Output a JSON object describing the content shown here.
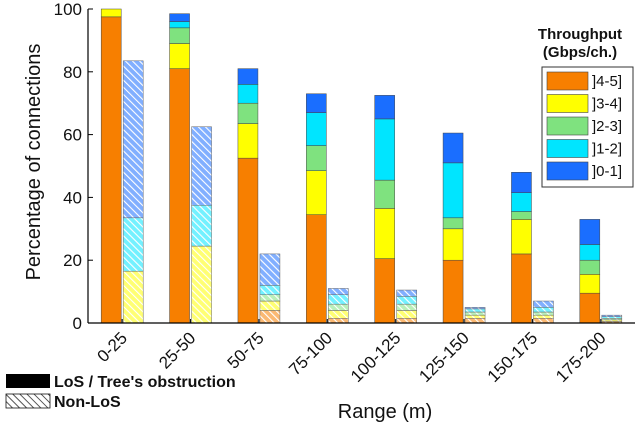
{
  "chart_data": {
    "type": "bar",
    "stacked": true,
    "ylabel": "Percentage of connections",
    "xlabel": "Range (m)",
    "ylim": [
      0,
      100
    ],
    "yticks": [
      0,
      20,
      40,
      60,
      80,
      100
    ],
    "grid": false,
    "categories": [
      "0-25",
      "25-50",
      "50-75",
      "75-100",
      "100-125",
      "125-150",
      "150-175",
      "175-200"
    ],
    "legend": {
      "title_line1": "Throughput",
      "title_line2": "(Gbps/ch.)",
      "placement": "top-right",
      "entries": [
        "]4-5]",
        "]3-4]",
        "]2-3]",
        "]1-2]",
        "]0-1]"
      ]
    },
    "groups": [
      {
        "name": "LoS / Tree's obstruction",
        "pattern": "solid"
      },
      {
        "name": "Non-LoS",
        "pattern": "hatched"
      }
    ],
    "colors": {
      "]4-5]": "#f77f00",
      "]3-4]": "#ffff00",
      "]2-3]": "#7fe27f",
      "]1-2]": "#00e5ff",
      "]0-1]": "#1a6eff"
    },
    "series": [
      {
        "name": "]4-5]",
        "group": "LoS / Tree's obstruction",
        "values": [
          97.5,
          81,
          52.5,
          34.5,
          20.5,
          20,
          22,
          9.5
        ]
      },
      {
        "name": "]3-4]",
        "group": "LoS / Tree's obstruction",
        "values": [
          2.5,
          8,
          11,
          14,
          16,
          10,
          11,
          6
        ]
      },
      {
        "name": "]2-3]",
        "group": "LoS / Tree's obstruction",
        "values": [
          0,
          5,
          6.5,
          8,
          9,
          3.5,
          2.5,
          4.5
        ]
      },
      {
        "name": "]1-2]",
        "group": "LoS / Tree's obstruction",
        "values": [
          0,
          2,
          6,
          10.5,
          19.5,
          17.5,
          6,
          5
        ]
      },
      {
        "name": "]0-1]",
        "group": "LoS / Tree's obstruction",
        "values": [
          0,
          2.5,
          5,
          6,
          7.5,
          9.5,
          6.5,
          8
        ]
      },
      {
        "name": "]4-5]",
        "group": "Non-LoS",
        "values": [
          0,
          0,
          4,
          1.5,
          1.5,
          1.5,
          1.5,
          0.5
        ]
      },
      {
        "name": "]3-4]",
        "group": "Non-LoS",
        "values": [
          16.5,
          24.5,
          3,
          2.5,
          2.5,
          1,
          1,
          0.5
        ]
      },
      {
        "name": "]2-3]",
        "group": "Non-LoS",
        "values": [
          0,
          0,
          2,
          2,
          2,
          1,
          1,
          0.5
        ]
      },
      {
        "name": "]1-2]",
        "group": "Non-LoS",
        "values": [
          17,
          13,
          3,
          3,
          2.5,
          1,
          1.5,
          0.5
        ]
      },
      {
        "name": "]0-1]",
        "group": "Non-LoS",
        "values": [
          50,
          25,
          10,
          2,
          2,
          0.5,
          2,
          0.5
        ]
      }
    ]
  }
}
